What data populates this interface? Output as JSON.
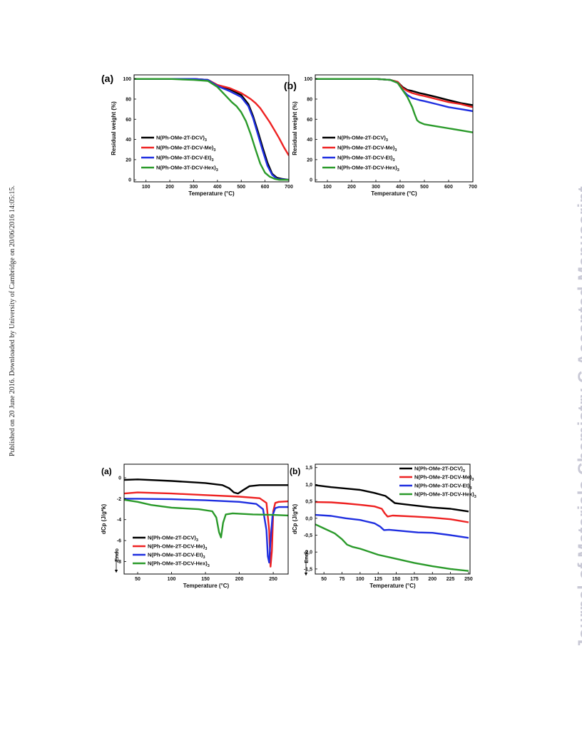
{
  "side_note": "Published on 20 June 2016. Downloaded by University of Cambridge on 20/06/2016 14:05:15.",
  "watermark": "Journal of Materials Chemistry C Accepted Manuscript",
  "colors": {
    "black": "#000000",
    "red": "#ee2222",
    "blue": "#1f2fe0",
    "green": "#2a9a2a"
  },
  "chart_data": [
    {
      "id": "tga-a",
      "panel_label": "(a)",
      "type": "line",
      "xlabel": "Temperature (°C)",
      "ylabel": "Residual weight (%)",
      "xlim": [
        50,
        700
      ],
      "ylim": [
        -2,
        104
      ],
      "xticks": [
        100,
        200,
        300,
        400,
        500,
        600,
        700
      ],
      "yticks": [
        0,
        20,
        40,
        60,
        80,
        100
      ],
      "xtick_labels": [
        "100",
        "200",
        "300",
        "400",
        "500",
        "600",
        "700"
      ],
      "ytick_labels": [
        "0",
        "20",
        "40",
        "60",
        "80",
        "100"
      ],
      "legend_position": "center-left",
      "series": [
        {
          "name": "N(Ph-OMe-2T-DCV)",
          "sub": "3",
          "color": "#000000",
          "x": [
            50,
            200,
            300,
            360,
            400,
            450,
            500,
            530,
            550,
            570,
            590,
            610,
            630,
            650,
            670,
            700
          ],
          "y": [
            100,
            100,
            100,
            99,
            94,
            90,
            84,
            75,
            63,
            48,
            32,
            17,
            6,
            2,
            1,
            0
          ]
        },
        {
          "name": "N(Ph-OMe-2T-DCV-Me)",
          "sub": "3",
          "color": "#ee2222",
          "x": [
            50,
            200,
            300,
            360,
            400,
            450,
            500,
            520,
            540,
            560,
            580,
            600,
            620,
            640,
            660,
            680,
            700
          ],
          "y": [
            100,
            100,
            100,
            99,
            94,
            91,
            86,
            83,
            80,
            76,
            71,
            64,
            57,
            49,
            41,
            32,
            24
          ]
        },
        {
          "name": "N(Ph-OMe-3T-DCV-Et)",
          "sub": "3",
          "color": "#1f2fe0",
          "x": [
            50,
            200,
            300,
            360,
            400,
            450,
            500,
            530,
            550,
            570,
            590,
            610,
            630,
            650,
            670,
            700
          ],
          "y": [
            100,
            100,
            100,
            99,
            93,
            88,
            82,
            73,
            61,
            45,
            29,
            14,
            5,
            1,
            0.5,
            0
          ]
        },
        {
          "name": "N(Ph-OMe-3T-DCV-Hex)",
          "sub": "3",
          "color": "#2a9a2a",
          "x": [
            50,
            200,
            300,
            360,
            400,
            440,
            460,
            480,
            500,
            520,
            540,
            560,
            580,
            600,
            620,
            640,
            660,
            700
          ],
          "y": [
            100,
            100,
            99,
            98,
            92,
            82,
            77,
            73,
            67,
            58,
            45,
            30,
            16,
            7,
            3,
            1,
            0,
            0
          ]
        }
      ]
    },
    {
      "id": "tga-b",
      "panel_label": "(b)",
      "type": "line",
      "xlabel": "Temperature (°C)",
      "ylabel": "Residual weight (%)",
      "xlim": [
        50,
        700
      ],
      "ylim": [
        -2,
        104
      ],
      "xticks": [
        100,
        200,
        300,
        400,
        500,
        600,
        700
      ],
      "yticks": [
        0,
        20,
        40,
        60,
        80,
        100
      ],
      "xtick_labels": [
        "100",
        "200",
        "300",
        "400",
        "500",
        "600",
        "700"
      ],
      "ytick_labels": [
        "0",
        "20",
        "40",
        "60",
        "80",
        "100"
      ],
      "legend_position": "center-left",
      "series": [
        {
          "name": "N(Ph-OMe-2T-DCV)",
          "sub": "3",
          "color": "#000000",
          "x": [
            50,
            200,
            300,
            360,
            390,
            410,
            430,
            450,
            480,
            500,
            550,
            600,
            650,
            700
          ],
          "y": [
            100,
            100,
            100,
            99,
            97,
            92,
            89,
            88,
            86,
            85,
            82,
            79,
            76,
            74
          ]
        },
        {
          "name": "N(Ph-OMe-2T-DCV-Me)",
          "sub": "3",
          "color": "#ee2222",
          "x": [
            50,
            200,
            300,
            360,
            390,
            410,
            430,
            450,
            480,
            500,
            550,
            600,
            650,
            700
          ],
          "y": [
            100,
            100,
            100,
            99,
            97,
            91,
            88,
            86,
            84,
            83,
            80,
            77,
            75,
            72
          ]
        },
        {
          "name": "N(Ph-OMe-3T-DCV-Et)",
          "sub": "3",
          "color": "#1f2fe0",
          "x": [
            50,
            200,
            300,
            360,
            390,
            410,
            430,
            450,
            480,
            500,
            550,
            600,
            650,
            700
          ],
          "y": [
            100,
            100,
            100,
            99,
            96,
            89,
            84,
            81,
            79,
            78,
            75,
            72,
            70,
            68
          ]
        },
        {
          "name": "N(Ph-OMe-3T-DCV-Hex)",
          "sub": "3",
          "color": "#2a9a2a",
          "x": [
            50,
            200,
            300,
            360,
            390,
            410,
            430,
            450,
            460,
            470,
            480,
            500,
            550,
            600,
            650,
            700
          ],
          "y": [
            100,
            100,
            100,
            99,
            96,
            89,
            82,
            72,
            65,
            59,
            57,
            55,
            53,
            51,
            49,
            47
          ]
        }
      ]
    },
    {
      "id": "dsc-a",
      "panel_label": "(a)",
      "type": "line",
      "xlabel": "Temperature (°C)",
      "ylabel": "dCp (J/g*k)",
      "xlim": [
        30,
        272
      ],
      "ylim": [
        -9.2,
        1.3
      ],
      "xticks": [
        50,
        100,
        150,
        200,
        250
      ],
      "yticks": [
        0,
        -2,
        -4,
        -6,
        -8
      ],
      "xtick_labels": [
        "50",
        "100",
        "150",
        "200",
        "250"
      ],
      "ytick_labels": [
        "0",
        "-2",
        "-4",
        "-6",
        "-8"
      ],
      "legend_position": "bottom-left",
      "endo_label": "Endo",
      "series": [
        {
          "name": "N(Ph-OMe-2T-DCV)",
          "sub": "3",
          "color": "#000000",
          "x": [
            30,
            50,
            100,
            150,
            175,
            185,
            192,
            198,
            205,
            215,
            230,
            250,
            272
          ],
          "y": [
            -0.2,
            -0.15,
            -0.3,
            -0.5,
            -0.7,
            -1.0,
            -1.4,
            -1.5,
            -1.2,
            -0.8,
            -0.7,
            -0.7,
            -0.7
          ]
        },
        {
          "name": "N(Ph-OMe-2T-DCV-Me)",
          "sub": "3",
          "color": "#ee2222",
          "x": [
            30,
            50,
            100,
            150,
            200,
            230,
            240,
            244,
            246,
            248,
            250,
            253,
            258,
            272
          ],
          "y": [
            -1.5,
            -1.4,
            -1.5,
            -1.65,
            -1.8,
            -1.95,
            -2.4,
            -5.0,
            -8.5,
            -7.0,
            -3.2,
            -2.4,
            -2.3,
            -2.25
          ]
        },
        {
          "name": "N(Ph-OMe-3T-DCV-Et)",
          "sub": "3",
          "color": "#1f2fe0",
          "x": [
            30,
            50,
            100,
            150,
            200,
            225,
            235,
            240,
            242,
            244,
            246,
            249,
            253,
            258,
            272
          ],
          "y": [
            -2.0,
            -2.0,
            -2.05,
            -2.15,
            -2.3,
            -2.5,
            -3.0,
            -5.0,
            -7.5,
            -8.1,
            -6.0,
            -3.6,
            -2.9,
            -2.8,
            -2.8
          ]
        },
        {
          "name": "N(Ph-OMe-3T-DCV-Hex)",
          "sub": "3",
          "color": "#2a9a2a",
          "x": [
            30,
            50,
            70,
            100,
            140,
            160,
            166,
            170,
            173,
            176,
            180,
            190,
            220,
            250,
            272
          ],
          "y": [
            -2.1,
            -2.3,
            -2.6,
            -2.85,
            -3.0,
            -3.2,
            -3.8,
            -5.2,
            -5.7,
            -4.3,
            -3.5,
            -3.4,
            -3.5,
            -3.55,
            -3.6
          ]
        }
      ]
    },
    {
      "id": "dsc-b",
      "panel_label": "(b)",
      "type": "line",
      "xlabel": "Temperature (°C)",
      "ylabel": "dCp (J/g*k)",
      "xlim": [
        38,
        252
      ],
      "ylim": [
        -1.65,
        1.6
      ],
      "xticks": [
        50,
        75,
        100,
        125,
        150,
        175,
        200,
        225,
        250
      ],
      "yticks": [
        1.5,
        1.0,
        0.5,
        0.0,
        -0.5,
        -1.0,
        -1.5
      ],
      "xtick_labels": [
        "50",
        "75",
        "100",
        "125",
        "150",
        "175",
        "200",
        "225",
        "250"
      ],
      "ytick_labels": [
        "1,5",
        "1,0",
        "0,5",
        "0,0",
        "-0,5",
        "-1,0",
        "-1,5"
      ],
      "legend_position": "top-right",
      "endo_label": "Endo",
      "series": [
        {
          "name": "N(Ph-OMe-2T-DCV)",
          "sub": "3",
          "color": "#000000",
          "x": [
            38,
            60,
            80,
            100,
            120,
            135,
            142,
            148,
            155,
            175,
            200,
            225,
            250
          ],
          "y": [
            0.98,
            0.92,
            0.88,
            0.84,
            0.75,
            0.66,
            0.55,
            0.45,
            0.43,
            0.38,
            0.32,
            0.28,
            0.2
          ]
        },
        {
          "name": "N(Ph-OMe-2T-DCV-Me)",
          "sub": "3",
          "color": "#ee2222",
          "x": [
            38,
            60,
            80,
            100,
            120,
            130,
            134,
            138,
            145,
            175,
            200,
            225,
            250
          ],
          "y": [
            0.48,
            0.47,
            0.44,
            0.4,
            0.35,
            0.28,
            0.15,
            0.05,
            0.08,
            0.05,
            0.02,
            -0.03,
            -0.12
          ]
        },
        {
          "name": "N(Ph-OMe-3T-DCV-Et)",
          "sub": "3",
          "color": "#1f2fe0",
          "x": [
            38,
            60,
            80,
            100,
            120,
            128,
            133,
            140,
            160,
            180,
            200,
            225,
            250
          ],
          "y": [
            0.1,
            0.07,
            0.0,
            -0.05,
            -0.15,
            -0.25,
            -0.35,
            -0.34,
            -0.38,
            -0.42,
            -0.43,
            -0.5,
            -0.58
          ]
        },
        {
          "name": "N(Ph-OMe-3T-DCV-Hex)",
          "sub": "3",
          "color": "#2a9a2a",
          "x": [
            38,
            50,
            65,
            75,
            82,
            90,
            100,
            125,
            150,
            175,
            200,
            225,
            250
          ],
          "y": [
            -0.18,
            -0.3,
            -0.45,
            -0.62,
            -0.78,
            -0.85,
            -0.9,
            -1.08,
            -1.2,
            -1.32,
            -1.42,
            -1.5,
            -1.56
          ]
        }
      ]
    }
  ]
}
